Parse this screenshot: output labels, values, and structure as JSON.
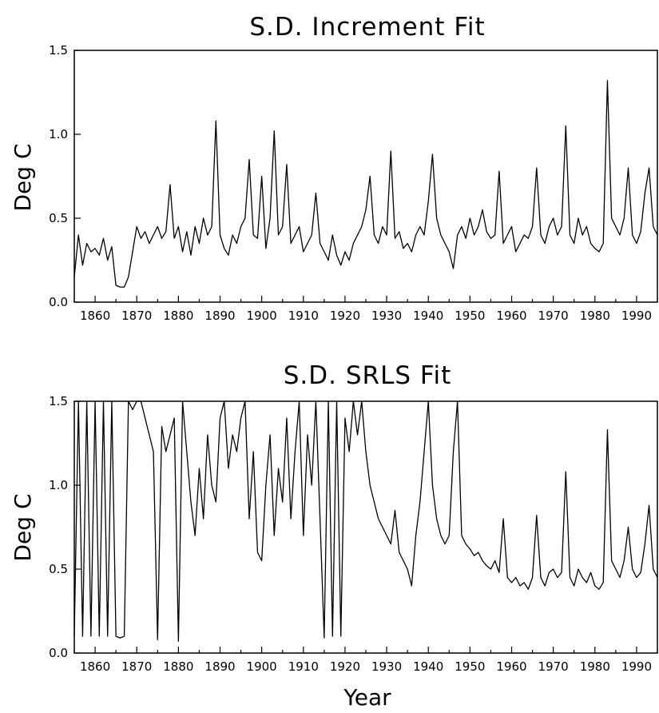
{
  "chart_data": [
    {
      "type": "line",
      "title": "S.D. Increment Fit",
      "ylabel": "Deg C",
      "xlabel": "",
      "xlim": [
        1855,
        1995
      ],
      "ylim": [
        0.0,
        1.5
      ],
      "xticks": [
        1860,
        1870,
        1880,
        1890,
        1900,
        1910,
        1920,
        1930,
        1940,
        1950,
        1960,
        1970,
        1980,
        1990
      ],
      "yticks": [
        "0.0",
        "0.5",
        "1.0",
        "1.5"
      ],
      "grid": false,
      "series": [
        {
          "x": [
            1855,
            1856,
            1857,
            1858,
            1859,
            1860,
            1861,
            1862,
            1863,
            1864,
            1865,
            1866,
            1867,
            1868,
            1869,
            1870,
            1871,
            1872,
            1873,
            1874,
            1875,
            1876,
            1877,
            1878,
            1879,
            1880,
            1881,
            1882,
            1883,
            1884,
            1885,
            1886,
            1887,
            1888,
            1889,
            1890,
            1891,
            1892,
            1893,
            1894,
            1895,
            1896,
            1897,
            1898,
            1899,
            1900,
            1901,
            1902,
            1903,
            1904,
            1905,
            1906,
            1907,
            1908,
            1909,
            1910,
            1911,
            1912,
            1913,
            1914,
            1915,
            1916,
            1917,
            1918,
            1919,
            1920,
            1921,
            1922,
            1923,
            1924,
            1925,
            1926,
            1927,
            1928,
            1929,
            1930,
            1931,
            1932,
            1933,
            1934,
            1935,
            1936,
            1937,
            1938,
            1939,
            1940,
            1941,
            1942,
            1943,
            1944,
            1945,
            1946,
            1947,
            1948,
            1949,
            1950,
            1951,
            1952,
            1953,
            1954,
            1955,
            1956,
            1957,
            1958,
            1959,
            1960,
            1961,
            1962,
            1963,
            1964,
            1965,
            1966,
            1967,
            1968,
            1969,
            1970,
            1971,
            1972,
            1973,
            1974,
            1975,
            1976,
            1977,
            1978,
            1979,
            1980,
            1981,
            1982,
            1983,
            1984,
            1985,
            1986,
            1987,
            1988,
            1989,
            1990,
            1991,
            1992,
            1993,
            1994,
            1995
          ],
          "values": [
            0.15,
            0.4,
            0.22,
            0.35,
            0.3,
            0.32,
            0.28,
            0.38,
            0.25,
            0.33,
            0.1,
            0.09,
            0.09,
            0.15,
            0.3,
            0.45,
            0.38,
            0.42,
            0.35,
            0.4,
            0.45,
            0.38,
            0.42,
            0.7,
            0.38,
            0.45,
            0.3,
            0.42,
            0.28,
            0.45,
            0.35,
            0.5,
            0.4,
            0.45,
            1.08,
            0.4,
            0.32,
            0.28,
            0.4,
            0.35,
            0.45,
            0.5,
            0.85,
            0.4,
            0.38,
            0.75,
            0.32,
            0.5,
            1.02,
            0.4,
            0.45,
            0.82,
            0.35,
            0.4,
            0.45,
            0.3,
            0.35,
            0.4,
            0.65,
            0.35,
            0.3,
            0.25,
            0.4,
            0.28,
            0.22,
            0.3,
            0.25,
            0.35,
            0.4,
            0.45,
            0.55,
            0.75,
            0.4,
            0.35,
            0.45,
            0.4,
            0.9,
            0.38,
            0.42,
            0.32,
            0.35,
            0.3,
            0.4,
            0.45,
            0.4,
            0.6,
            0.88,
            0.5,
            0.4,
            0.35,
            0.3,
            0.2,
            0.4,
            0.45,
            0.38,
            0.5,
            0.4,
            0.45,
            0.55,
            0.42,
            0.38,
            0.4,
            0.78,
            0.35,
            0.4,
            0.45,
            0.3,
            0.35,
            0.4,
            0.38,
            0.45,
            0.8,
            0.4,
            0.35,
            0.45,
            0.5,
            0.4,
            0.45,
            1.05,
            0.4,
            0.35,
            0.5,
            0.4,
            0.45,
            0.35,
            0.32,
            0.3,
            0.35,
            1.32,
            0.5,
            0.45,
            0.4,
            0.5,
            0.8,
            0.4,
            0.35,
            0.42,
            0.65,
            0.8,
            0.45,
            0.4
          ]
        }
      ]
    },
    {
      "type": "line",
      "title": "S.D. SRLS Fit",
      "ylabel": "Deg C",
      "xlabel": "Year",
      "xlim": [
        1855,
        1995
      ],
      "ylim": [
        0.0,
        1.5
      ],
      "xticks": [
        1860,
        1870,
        1880,
        1890,
        1900,
        1910,
        1920,
        1930,
        1940,
        1950,
        1960,
        1970,
        1980,
        1990
      ],
      "yticks": [
        "0.0",
        "0.5",
        "1.0",
        "1.5"
      ],
      "grid": false,
      "series": [
        {
          "x": [
            1855,
            1856,
            1857,
            1858,
            1859,
            1860,
            1861,
            1862,
            1863,
            1864,
            1865,
            1866,
            1867,
            1868,
            1869,
            1870,
            1871,
            1872,
            1873,
            1874,
            1875,
            1876,
            1877,
            1878,
            1879,
            1880,
            1881,
            1882,
            1883,
            1884,
            1885,
            1886,
            1887,
            1888,
            1889,
            1890,
            1891,
            1892,
            1893,
            1894,
            1895,
            1896,
            1897,
            1898,
            1899,
            1900,
            1901,
            1902,
            1903,
            1904,
            1905,
            1906,
            1907,
            1908,
            1909,
            1910,
            1911,
            1912,
            1913,
            1914,
            1915,
            1916,
            1917,
            1918,
            1919,
            1920,
            1921,
            1922,
            1923,
            1924,
            1925,
            1926,
            1927,
            1928,
            1929,
            1930,
            1931,
            1932,
            1933,
            1934,
            1935,
            1936,
            1937,
            1938,
            1939,
            1940,
            1941,
            1942,
            1943,
            1944,
            1945,
            1946,
            1947,
            1948,
            1949,
            1950,
            1951,
            1952,
            1953,
            1954,
            1955,
            1956,
            1957,
            1958,
            1959,
            1960,
            1961,
            1962,
            1963,
            1964,
            1965,
            1966,
            1967,
            1968,
            1969,
            1970,
            1971,
            1972,
            1973,
            1974,
            1975,
            1976,
            1977,
            1978,
            1979,
            1980,
            1981,
            1982,
            1983,
            1984,
            1985,
            1986,
            1987,
            1988,
            1989,
            1990,
            1991,
            1992,
            1993,
            1994,
            1995
          ],
          "values": [
            0.1,
            1.5,
            0.1,
            1.5,
            0.1,
            1.5,
            0.1,
            1.5,
            0.1,
            1.5,
            0.1,
            0.09,
            0.1,
            1.5,
            1.45,
            1.5,
            1.5,
            1.4,
            1.3,
            1.2,
            0.08,
            1.35,
            1.2,
            1.3,
            1.4,
            0.07,
            1.5,
            1.2,
            0.9,
            0.7,
            1.1,
            0.8,
            1.3,
            1.0,
            0.9,
            1.4,
            1.5,
            1.1,
            1.3,
            1.2,
            1.4,
            1.5,
            0.8,
            1.2,
            0.6,
            0.55,
            1.0,
            1.3,
            0.7,
            1.1,
            0.9,
            1.4,
            0.8,
            1.2,
            1.5,
            0.7,
            1.3,
            1.0,
            1.5,
            0.8,
            0.09,
            1.5,
            0.1,
            1.5,
            0.1,
            1.4,
            1.2,
            1.5,
            1.3,
            1.5,
            1.2,
            1.0,
            0.9,
            0.8,
            0.75,
            0.7,
            0.65,
            0.85,
            0.6,
            0.55,
            0.5,
            0.4,
            0.7,
            0.9,
            1.2,
            1.5,
            1.0,
            0.8,
            0.7,
            0.65,
            0.7,
            1.2,
            1.5,
            0.7,
            0.65,
            0.62,
            0.58,
            0.6,
            0.55,
            0.52,
            0.5,
            0.55,
            0.48,
            0.8,
            0.45,
            0.42,
            0.45,
            0.4,
            0.42,
            0.38,
            0.45,
            0.82,
            0.45,
            0.4,
            0.48,
            0.5,
            0.45,
            0.48,
            1.08,
            0.45,
            0.4,
            0.5,
            0.45,
            0.42,
            0.48,
            0.4,
            0.38,
            0.42,
            1.33,
            0.55,
            0.5,
            0.45,
            0.55,
            0.75,
            0.5,
            0.45,
            0.48,
            0.65,
            0.88,
            0.5,
            0.45
          ]
        }
      ]
    }
  ]
}
